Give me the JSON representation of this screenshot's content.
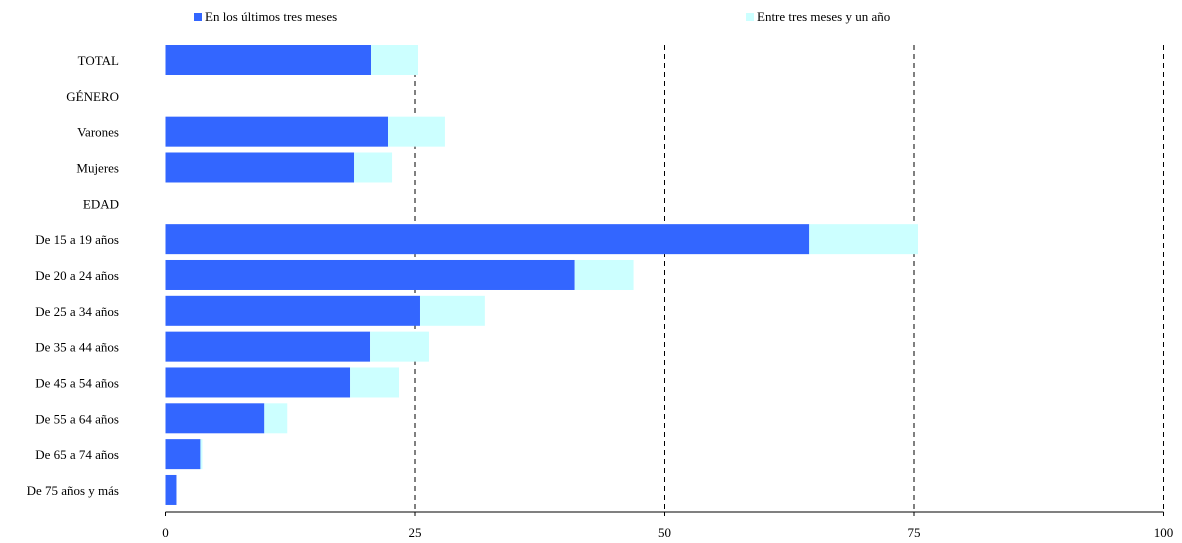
{
  "chart_data": {
    "type": "bar",
    "orientation": "horizontal",
    "stacked": true,
    "categories": [
      "TOTAL",
      "GÉNERO",
      "Varones",
      "Mujeres",
      "EDAD",
      "De 15 a 19 años",
      "De 20 a 24 años",
      "De 25 a 34 años",
      "De 35 a 44 años",
      "De 45 a 54 años",
      "De 55 a 64 años",
      "De 65 a 74 años",
      "De 75 años y más"
    ],
    "series": [
      {
        "name": "En los últimos tres meses",
        "color": "#3366ff",
        "values": [
          20.6,
          null,
          22.3,
          18.9,
          null,
          64.5,
          41.0,
          25.5,
          20.5,
          18.5,
          9.9,
          3.5,
          1.1
        ]
      },
      {
        "name": "Entre tres meses y un año",
        "color": "#ccffff",
        "values": [
          4.7,
          null,
          5.7,
          3.8,
          null,
          10.9,
          5.9,
          6.5,
          5.9,
          4.9,
          2.3,
          0.2,
          0.0
        ]
      }
    ],
    "xlim": [
      0,
      100
    ],
    "xticks": [
      0,
      25,
      50,
      75,
      100
    ],
    "grid": "vertical dashed",
    "legend": "top"
  }
}
